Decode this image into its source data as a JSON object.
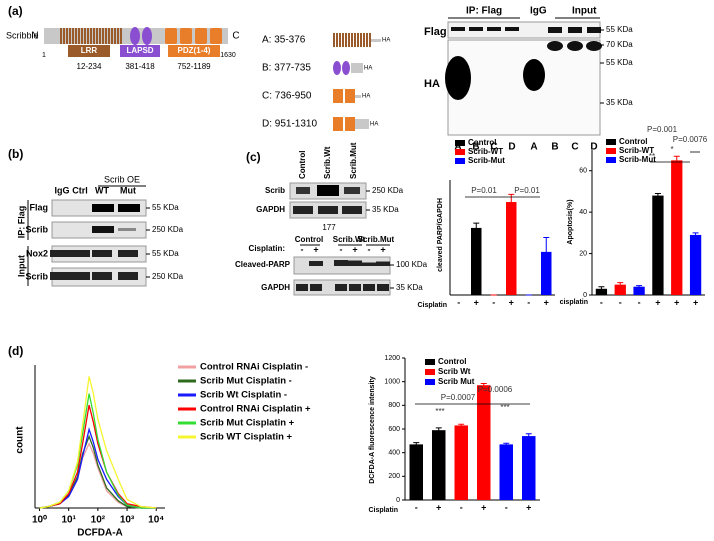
{
  "panel_a": {
    "label": "(a)",
    "protein": "Scribble",
    "n_term": "N",
    "c_term": "C",
    "start": "1",
    "end": "1630",
    "domains": [
      {
        "name": "LRR",
        "range": "12-234"
      },
      {
        "name": "LAPSD",
        "range": "381-418"
      },
      {
        "name": "PDZ(1-4)",
        "range": "752-1189"
      }
    ],
    "constructs": [
      {
        "label": "A: 35-376",
        "tag": "HA"
      },
      {
        "label": "B: 377-735",
        "tag": "HA"
      },
      {
        "label": "C: 736-950",
        "tag": "HA"
      },
      {
        "label": "D: 951-1310",
        "tag": "HA"
      }
    ],
    "blot": {
      "ip": "IP: Flag",
      "igg": "IgG",
      "input": "Input",
      "rows": [
        "Flag",
        "HA"
      ],
      "markers": [
        "55 KDa",
        "70 KDa",
        "55 KDa",
        "35 KDa"
      ],
      "lanes": [
        "A",
        "B",
        "C",
        "D",
        "A",
        "B",
        "C",
        "D"
      ]
    }
  },
  "panel_b": {
    "label": "(b)",
    "group": "Scrib OE",
    "columns": [
      "IgG",
      "Ctrl",
      "WT",
      "Mut"
    ],
    "ip": "IP: Flag",
    "input": "Input",
    "rows": [
      "Flag",
      "Scrib",
      "Nox2",
      "Scrib"
    ],
    "markers": [
      "55 KDa",
      "250 KDa",
      "55 KDa",
      "250 KDa"
    ]
  },
  "panel_c": {
    "label": "(c)",
    "columns": [
      "Control",
      "Scrib.Wt",
      "Scrib.Mut"
    ],
    "top_rows": [
      "Scrib",
      "GAPDH"
    ],
    "top_markers": [
      "250 KDa",
      "35 KDa"
    ],
    "note": "177",
    "cisplatin": "Cisplatin:",
    "groups": [
      "Control",
      "Scrib.Wt",
      "Scrib.Mut"
    ],
    "signs": [
      "-",
      "+",
      "-",
      "+",
      "-",
      "+"
    ],
    "bottom_rows": [
      "Cleaved-PARP",
      "GAPDH"
    ],
    "bottom_markers": [
      "100 KDa",
      "35 KDa"
    ]
  },
  "panel_d": {
    "label": "(d)"
  },
  "chart_data": [
    {
      "type": "bar",
      "ylabel": "cleaved PARP/GAPDH",
      "xlabel": "Cisplatin",
      "categories": [
        "-",
        "+",
        "-",
        "+",
        "-",
        "+"
      ],
      "series": [
        {
          "name": "Control",
          "color": "#000000",
          "values": [
            0,
            70,
            null,
            null,
            null,
            null
          ],
          "errors": [
            0,
            5,
            null,
            null,
            null,
            null
          ]
        },
        {
          "name": "Scrib-WT",
          "color": "#ff0000",
          "values": [
            null,
            null,
            0,
            97,
            null,
            null
          ],
          "errors": [
            null,
            null,
            0,
            8,
            null,
            null
          ]
        },
        {
          "name": "Scrib-Mut",
          "color": "#0000ff",
          "values": [
            null,
            null,
            null,
            null,
            0,
            45
          ],
          "errors": [
            null,
            null,
            null,
            null,
            0,
            15
          ]
        }
      ],
      "ylim": [
        0,
        120
      ],
      "annotations": [
        "P=0.01",
        "P=0.01"
      ]
    },
    {
      "type": "bar",
      "ylabel": "Apoptosis(%)",
      "xlabel": "cisplatin",
      "categories": [
        "-",
        "-",
        "-",
        "+",
        "+",
        "+"
      ],
      "series": [
        {
          "name": "Control",
          "color": "#000000",
          "values": [
            3,
            null,
            null,
            48,
            null,
            null
          ],
          "errors": [
            1,
            null,
            null,
            1,
            null,
            null
          ]
        },
        {
          "name": "Scrib-WT",
          "color": "#ff0000",
          "values": [
            null,
            5,
            null,
            null,
            65,
            null
          ],
          "errors": [
            null,
            1,
            null,
            null,
            2,
            null
          ]
        },
        {
          "name": "Scrib-Mut",
          "color": "#0000ff",
          "values": [
            null,
            null,
            4,
            null,
            null,
            29
          ],
          "errors": [
            null,
            null,
            0.5,
            null,
            null,
            1
          ]
        }
      ],
      "ylim": [
        0,
        70
      ],
      "yticks": [
        0,
        20,
        40,
        60
      ],
      "annotations": [
        "P=0.001",
        "P=0.0076",
        "**",
        "*"
      ]
    },
    {
      "type": "bar",
      "ylabel": "DCFDA-A fluorescence intensity",
      "xlabel": "Cisplatin",
      "categories": [
        "-",
        "+",
        "-",
        "+",
        "-",
        "+"
      ],
      "series": [
        {
          "name": "Control",
          "color": "#000000",
          "values": [
            470,
            590,
            null,
            null,
            null,
            null
          ],
          "errors": [
            15,
            20,
            null,
            null,
            null,
            null
          ]
        },
        {
          "name": "Scrib Wt",
          "color": "#ff0000",
          "values": [
            null,
            null,
            630,
            970,
            null,
            null
          ],
          "errors": [
            null,
            null,
            10,
            15,
            null,
            null
          ]
        },
        {
          "name": "Scrib Mut",
          "color": "#0000ff",
          "values": [
            null,
            null,
            null,
            null,
            470,
            540
          ],
          "errors": [
            null,
            null,
            null,
            null,
            10,
            20
          ]
        }
      ],
      "ylim": [
        0,
        1200
      ],
      "yticks": [
        0,
        200,
        400,
        600,
        800,
        1000,
        1200
      ],
      "annotations": [
        "P=0.0007",
        "P=0.0006",
        "***",
        "***"
      ]
    },
    {
      "type": "line",
      "xlabel": "DCFDA-A",
      "ylabel": "count",
      "xlog": true,
      "x": [
        1,
        2,
        5,
        10,
        20,
        30,
        50,
        70,
        100,
        200,
        500,
        1000,
        3000,
        10000
      ],
      "xlim": [
        0.7,
        20000
      ],
      "xticks": [
        {
          "value": 1,
          "label": "10⁰"
        },
        {
          "value": 10,
          "label": "10¹"
        },
        {
          "value": 100,
          "label": "10²"
        },
        {
          "value": 1000,
          "label": "10³"
        },
        {
          "value": 10000,
          "label": "10⁴"
        }
      ],
      "ylim": [
        0,
        100
      ],
      "series": [
        {
          "name": "Control RNAi Cisplatin -",
          "color": "#f0a0a0",
          "values": [
            0,
            1,
            3,
            8,
            20,
            35,
            45,
            38,
            28,
            12,
            4,
            1,
            0,
            0
          ]
        },
        {
          "name": "Scrib Mut Cisplatin -",
          "color": "#2e6b1e",
          "values": [
            0,
            1,
            3,
            9,
            22,
            38,
            50,
            42,
            30,
            14,
            5,
            1,
            0,
            0
          ]
        },
        {
          "name": "Scrib Wt Cisplatin -",
          "color": "#1a1aff",
          "values": [
            0,
            1,
            3,
            8,
            20,
            36,
            55,
            46,
            34,
            20,
            8,
            2,
            0,
            0
          ]
        },
        {
          "name": "Control RNAi Cisplatin +",
          "color": "#ff0000",
          "values": [
            0,
            1,
            3,
            10,
            25,
            45,
            72,
            60,
            45,
            25,
            10,
            3,
            1,
            0
          ]
        },
        {
          "name": "Scrib Mut Cisplatin +",
          "color": "#33dd33",
          "values": [
            0,
            1,
            4,
            12,
            30,
            52,
            80,
            66,
            48,
            25,
            9,
            2,
            0,
            0
          ]
        },
        {
          "name": "Scrib WT Cisplatin +",
          "color": "#f5f530",
          "values": [
            0,
            1,
            4,
            12,
            32,
            58,
            92,
            80,
            62,
            40,
            20,
            6,
            1,
            0
          ]
        }
      ]
    }
  ]
}
